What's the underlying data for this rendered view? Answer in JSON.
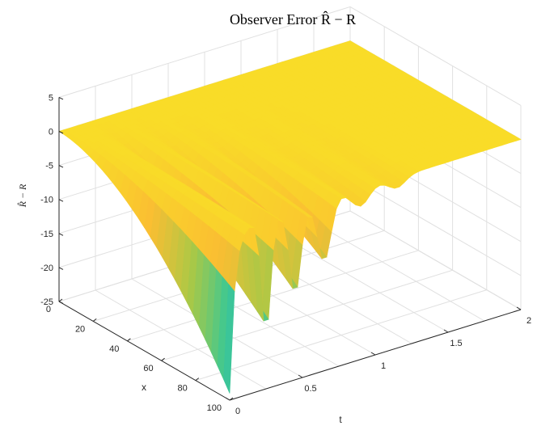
{
  "chart_data": {
    "type": "surface",
    "title": "Observer Error R̂ − R",
    "xlabel": "x",
    "ylabel": "t",
    "zlabel": "R̂ − R",
    "x_ticks": [
      "0",
      "20",
      "40",
      "60",
      "80",
      "100"
    ],
    "t_ticks": [
      "0",
      "0.5",
      "1",
      "1.5",
      "2"
    ],
    "z_ticks": [
      "5",
      "0",
      "-5",
      "-10",
      "-15",
      "-20",
      "-25"
    ],
    "xlim": [
      0,
      100
    ],
    "tlim": [
      0,
      2
    ],
    "zlim": [
      -25,
      5
    ],
    "grid": true,
    "colormap": "parula",
    "surface_profile": {
      "description_points_x": [
        0,
        20,
        40,
        60,
        80,
        100
      ],
      "min_error_at_t0": [
        0,
        -3,
        -6,
        -10,
        -16,
        -24
      ],
      "secondary_dips": [
        {
          "t": 0.25,
          "value": -19
        },
        {
          "t": 0.45,
          "value": -14
        },
        {
          "t": 0.65,
          "value": -10
        }
      ],
      "steady_value": 0
    }
  }
}
